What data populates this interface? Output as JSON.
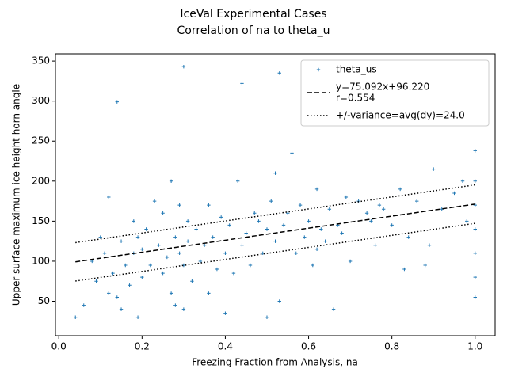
{
  "chart_data": {
    "type": "scatter",
    "title": "IceVal Experimental Cases",
    "subtitle": "Correlation of na to theta_u",
    "x_label": "Freezing Fraction from Analysis, na",
    "y_label": "Upper surface maximum ice height horn angle",
    "xlim": [
      -0.008,
      1.048
    ],
    "ylim": [
      7,
      359
    ],
    "xticks": [
      {
        "value": 0,
        "label": "0.0"
      },
      {
        "value": 0.2,
        "label": "0.2"
      },
      {
        "value": 0.4,
        "label": "0.4"
      },
      {
        "value": 0.6,
        "label": "0.6"
      },
      {
        "value": 0.8,
        "label": "0.8"
      },
      {
        "value": 1,
        "label": "1.0"
      }
    ],
    "yticks": [
      50,
      100,
      150,
      200,
      250,
      300,
      350
    ],
    "legend": "upper right",
    "series": [
      {
        "name": [
          "theta_us"
        ],
        "style": "marker",
        "color": "#1f77b4",
        "x": [
          0.04,
          0.06,
          0.08,
          0.09,
          0.1,
          0.11,
          0.12,
          0.12,
          0.13,
          0.14,
          0.14,
          0.15,
          0.15,
          0.16,
          0.17,
          0.18,
          0.18,
          0.19,
          0.19,
          0.2,
          0.2,
          0.21,
          0.22,
          0.23,
          0.24,
          0.25,
          0.25,
          0.26,
          0.27,
          0.27,
          0.28,
          0.28,
          0.29,
          0.29,
          0.3,
          0.3,
          0.3,
          0.31,
          0.31,
          0.32,
          0.33,
          0.34,
          0.35,
          0.36,
          0.36,
          0.37,
          0.38,
          0.39,
          0.4,
          0.4,
          0.41,
          0.42,
          0.43,
          0.44,
          0.44,
          0.45,
          0.46,
          0.47,
          0.48,
          0.49,
          0.5,
          0.5,
          0.51,
          0.52,
          0.52,
          0.53,
          0.53,
          0.54,
          0.55,
          0.56,
          0.57,
          0.58,
          0.59,
          0.6,
          0.61,
          0.62,
          0.63,
          0.64,
          0.65,
          0.66,
          0.67,
          0.68,
          0.7,
          0.72,
          0.74,
          0.75,
          0.76,
          0.78,
          0.8,
          0.82,
          0.84,
          0.86,
          0.88,
          0.9,
          0.92,
          0.95,
          0.98,
          1.0,
          1.0,
          1.0,
          1.0,
          1.0,
          1.0,
          1.0,
          0.97,
          0.89,
          0.83,
          0.77,
          0.69,
          0.62
        ],
        "values": [
          30,
          45,
          100,
          75,
          130,
          110,
          180,
          60,
          85,
          299,
          55,
          125,
          40,
          95,
          70,
          150,
          110,
          30,
          130,
          115,
          80,
          140,
          95,
          175,
          120,
          160,
          85,
          105,
          200,
          60,
          130,
          45,
          110,
          170,
          343,
          95,
          40,
          150,
          125,
          75,
          140,
          100,
          120,
          170,
          60,
          130,
          90,
          155,
          110,
          35,
          145,
          85,
          200,
          322,
          120,
          135,
          95,
          160,
          150,
          110,
          140,
          30,
          175,
          210,
          125,
          335,
          50,
          145,
          160,
          235,
          110,
          170,
          130,
          150,
          95,
          190,
          140,
          125,
          165,
          40,
          145,
          135,
          100,
          175,
          160,
          150,
          120,
          165,
          145,
          190,
          130,
          175,
          95,
          215,
          165,
          185,
          150,
          238,
          200,
          170,
          140,
          110,
          80,
          55,
          200,
          120,
          90,
          170,
          180,
          115
        ]
      },
      {
        "name": [
          "y=75.092x+96.220",
          "r=0.554"
        ],
        "style": "dashed",
        "color": "#000000",
        "x": [
          0.04,
          1.0
        ],
        "values": [
          99.22,
          171.31
        ]
      },
      {
        "name": [
          "+/-variance=avg(dy)=24.0"
        ],
        "style": "dotted",
        "color": "#000000",
        "x": [
          0.04,
          1.0
        ],
        "values": [
          123.22,
          195.31
        ],
        "lower_values": [
          75.22,
          147.31
        ]
      }
    ]
  }
}
